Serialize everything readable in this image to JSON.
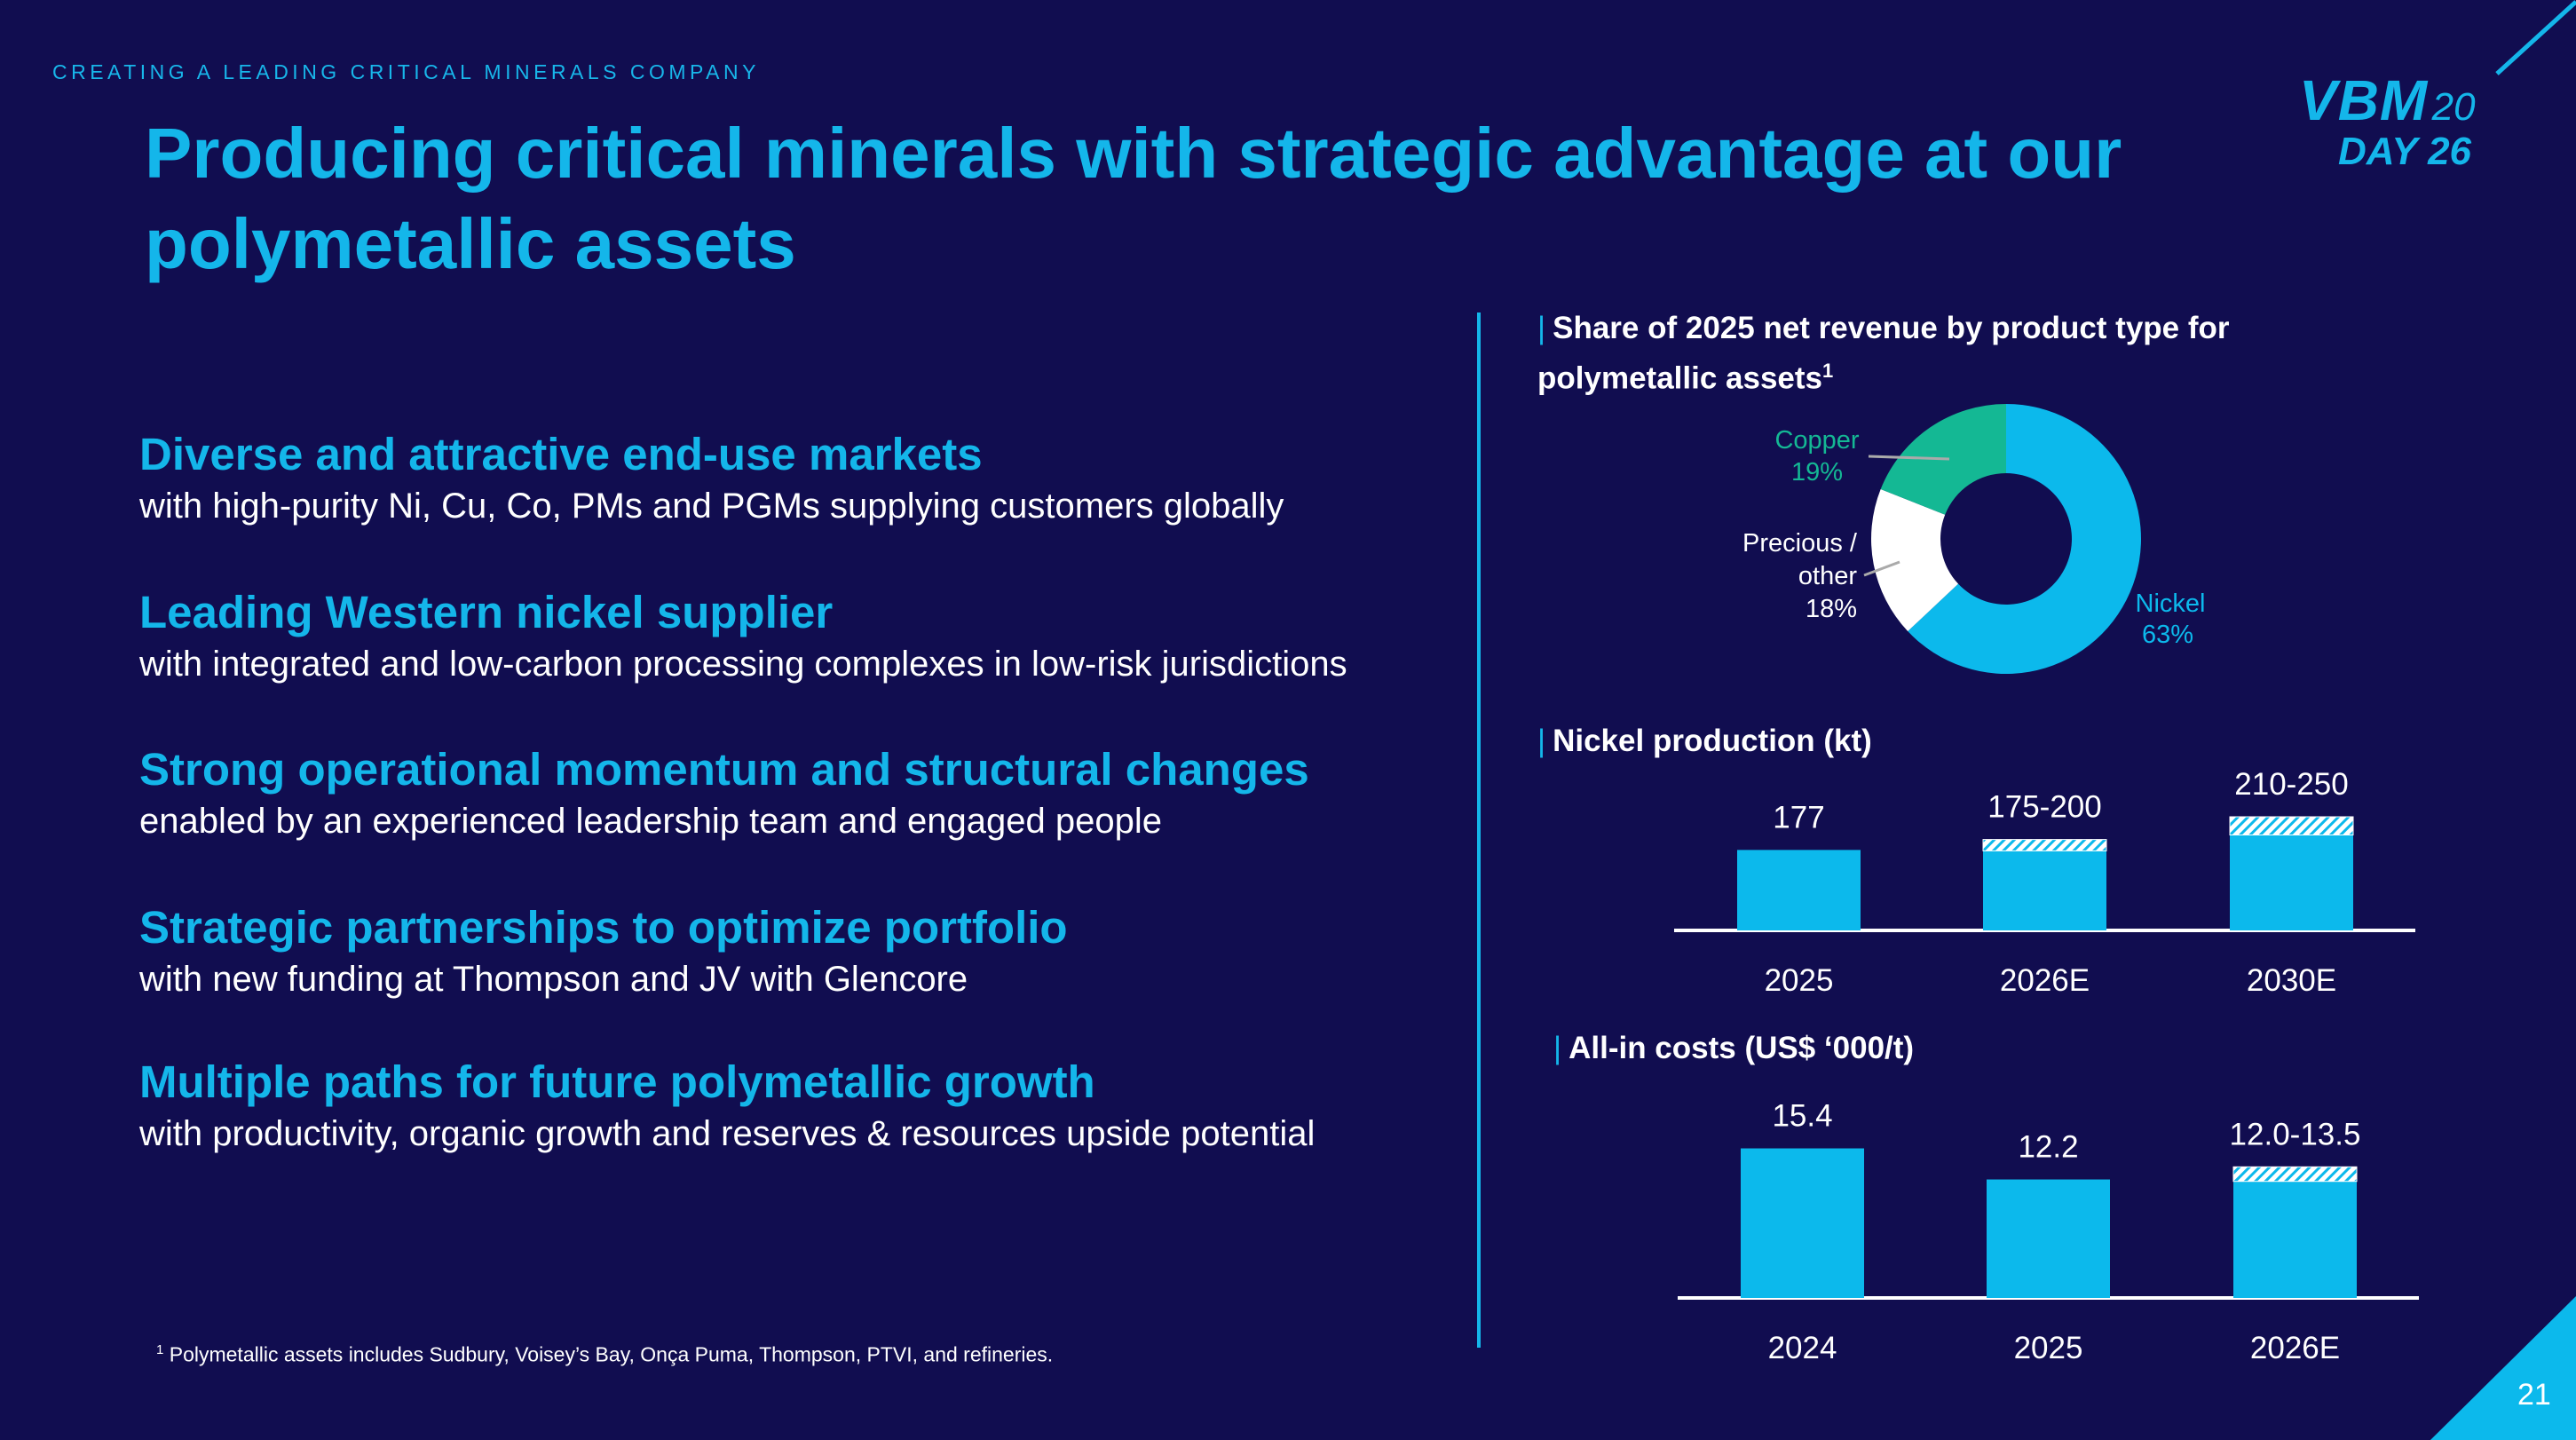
{
  "header": {
    "kicker": "CREATING A LEADING CRITICAL MINERALS COMPANY",
    "title": "Producing critical minerals with strategic advantage at our polymetallic assets"
  },
  "logo": {
    "vbm": "VBM",
    "year_top": "20",
    "day": "DAY",
    "year_bottom": "26"
  },
  "bullets": [
    {
      "heading": "Diverse and attractive end-use markets",
      "body": "with high-purity Ni, Cu, Co, PMs and PGMs supplying customers globally"
    },
    {
      "heading": "Leading Western nickel supplier",
      "body": "with integrated and low-carbon processing complexes in low-risk jurisdictions"
    },
    {
      "heading": "Strong operational momentum and structural changes",
      "body": "enabled by an experienced leadership team and engaged people"
    },
    {
      "heading": "Strategic partnerships to optimize portfolio",
      "body": "with new funding at Thompson and JV with Glencore"
    },
    {
      "heading": "Multiple paths for future polymetallic growth",
      "body": "with productivity, organic growth and reserves & resources upside potential"
    }
  ],
  "footnote": {
    "marker": "1",
    "text": "Polymetallic assets includes Sudbury, Voisey’s Bay, Onça Puma, Thompson, PTVI, and refineries."
  },
  "page_number": "21",
  "colors": {
    "background": "#110d50",
    "accent": "#0cb9ec",
    "copper": "#14b894",
    "precious": "#ffffff"
  },
  "chart_data": [
    {
      "type": "pie",
      "title": "Share of 2025 net revenue by product type for polymetallic assets",
      "title_sup": "1",
      "slices": [
        {
          "name": "Nickel",
          "value": 63,
          "label": "63%",
          "color": "#0cb9ec"
        },
        {
          "name": "Precious / other",
          "value": 18,
          "label": "18%",
          "color": "#ffffff"
        },
        {
          "name": "Copper",
          "value": 19,
          "label": "19%",
          "color": "#14b894"
        }
      ]
    },
    {
      "type": "bar",
      "title": "Nickel production (kt)",
      "categories": [
        "2025",
        "2026E",
        "2030E"
      ],
      "low": [
        177,
        175,
        210
      ],
      "high": [
        177,
        200,
        250
      ],
      "labels": [
        "177",
        "175-200",
        "210-250"
      ]
    },
    {
      "type": "bar",
      "title": "All-in costs (US$ ‘000/t)",
      "categories": [
        "2024",
        "2025",
        "2026E"
      ],
      "low": [
        15.4,
        12.2,
        12.0
      ],
      "high": [
        15.4,
        12.2,
        13.5
      ],
      "labels": [
        "15.4",
        "12.2",
        "12.0-13.5"
      ]
    }
  ]
}
